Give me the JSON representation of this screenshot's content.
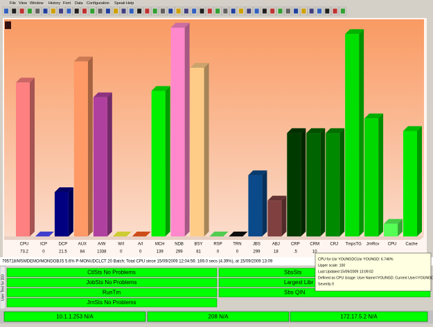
{
  "menu": [
    "File",
    "View",
    "Window",
    "History",
    "Font",
    "Data",
    "Configuration",
    "Speak",
    "Help"
  ],
  "chart_data": {
    "type": "bar3d",
    "categories": [
      "CPU",
      "ICP",
      "DCP",
      "AUX",
      "A/W",
      "W/I",
      "A/I",
      "MCH",
      "NDB",
      "BSY",
      "RSP",
      "TRN",
      "JBS",
      "ABJ",
      "CRP",
      "CRM",
      "CRJ",
      "TmpsTG",
      "JrnRcv",
      "CPU",
      "Cache"
    ],
    "readings": [
      "73.2",
      "0",
      "21.5",
      "84",
      "1338",
      "0",
      "0",
      "139",
      "299",
      "81",
      "0",
      "0",
      "299",
      "18",
      ".5",
      "10",
      null,
      null,
      null,
      null,
      null
    ],
    "values": [
      73,
      0,
      21,
      83,
      66,
      0,
      0,
      69,
      99,
      80,
      0,
      0,
      29,
      17,
      49,
      49,
      49,
      96,
      56,
      6,
      50
    ],
    "colors": [
      "#ff8080",
      "#5050ff",
      "#000080",
      "#ff9966",
      "#b040a0",
      "#ffff40",
      "#ff6020",
      "#00f000",
      "#ff88cc",
      "#ffcc88",
      "#66ff66",
      "#111111",
      "#0a4a8a",
      "#804040",
      "#003a00",
      "#006400",
      "#008a00",
      "#00e000",
      "#00d800",
      "#55ff55",
      "#00e800"
    ],
    "ylim": [
      0,
      100
    ]
  },
  "status_line": "795718/MSMDEMO/MONDOBJS 5.6% P-MONUDCLCT 20 Batch; Total CPU since 15/09/2009 12:04:56: 169.0 secs (4.39%), at 15/09/2009 13:09",
  "side_label": "User Text for 203",
  "panels": [
    [
      "CtlSts No Problems",
      "SbsSts"
    ],
    [
      "JobSts No Problems",
      "Largest Libr"
    ],
    [
      "RunTm",
      "Sbs QIN"
    ],
    [
      "JrnSts No Problems"
    ]
  ],
  "footer": [
    "10.1.1.253 N/A",
    "208 N/A",
    "172.17.5.2 N/A"
  ],
  "tooltip": [
    "CPU for Usr YOUNGDCUsr YOUNGD: 6.746%",
    "Upper scale: 100",
    "Last Updated 15/09/2009 13:09:02",
    "Defined as CPU Usage: User Name=YOUNGD; Current User=YOUNGD",
    "Severity 0"
  ]
}
